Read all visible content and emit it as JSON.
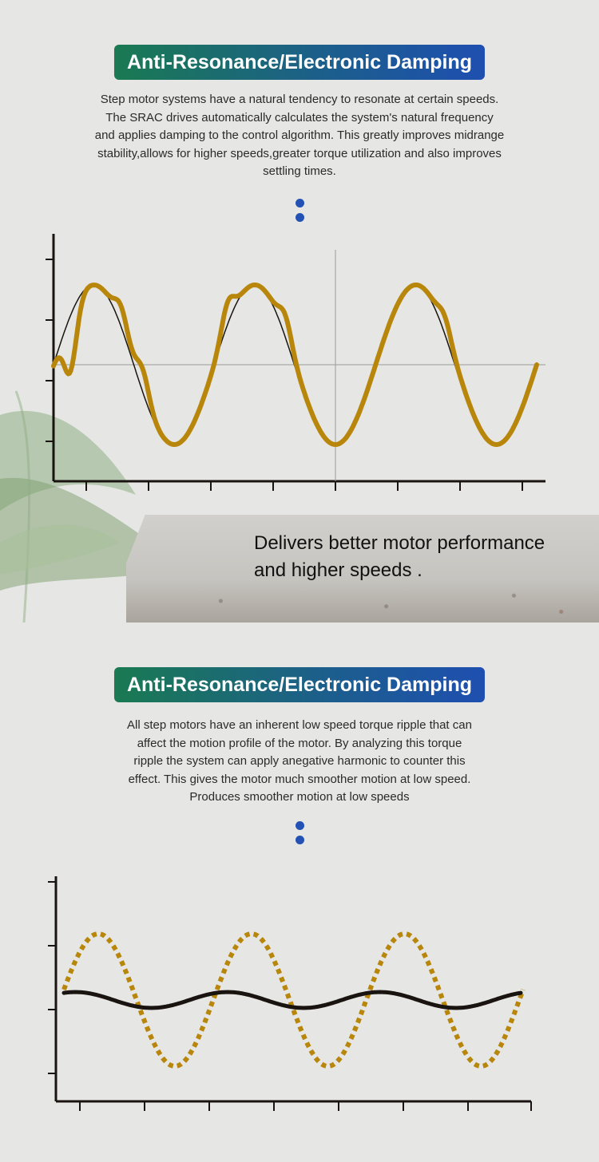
{
  "section1": {
    "title": "Anti-Resonance/Electronic Damping",
    "description": "Step motor systems have a natural tendency to resonate at certain speeds.\nThe SRAC drives automatically calculates the system's natural frequency\nand applies damping to the control algorithm. This greatly improves midrange\nstability,allows for higher speeds,greater torque utilization and also improves\nsettling times.",
    "tagline": "Delivers better motor performance\nand higher speeds ."
  },
  "section2": {
    "title": "Anti-Resonance/Electronic Damping",
    "description": "All step motors have an inherent low speed torque ripple that can\naffect the motion profile of the motor. By analyzing this torque\nripple the system can apply anegative harmonic to counter this\neffect. This gives the motor much smoother motion at low speed.\nProduces smoother motion at low speeds"
  },
  "colors": {
    "gold_curve": "#b8860b",
    "black_curve": "#1a1410",
    "dot_blue": "#2452b4",
    "title_green": "#1a7a52",
    "title_blue": "#1e4fb0"
  },
  "chart_data": [
    {
      "type": "line",
      "title": "",
      "series": [
        {
          "color": "#1a1410",
          "style": "thin",
          "kind": "ideal sine",
          "cycles": 3,
          "amplitude": 1
        },
        {
          "color": "#b8860b",
          "style": "thick",
          "kind": "resonant sine with distortion on first two cycles",
          "cycles": 3,
          "amplitude": 1
        }
      ],
      "grid": "crosshair at center",
      "x_ticks": 7,
      "y_ticks": 4
    },
    {
      "type": "line",
      "title": "",
      "series": [
        {
          "color": "#b8860b",
          "style": "dotted",
          "kind": "torque ripple sine",
          "cycles": 3,
          "amplitude": 1
        },
        {
          "color": "#1a1410",
          "style": "solid",
          "kind": "compensated sine",
          "cycles": 3,
          "amplitude": 0.12
        }
      ],
      "x_ticks": 8,
      "y_ticks": 4
    }
  ]
}
